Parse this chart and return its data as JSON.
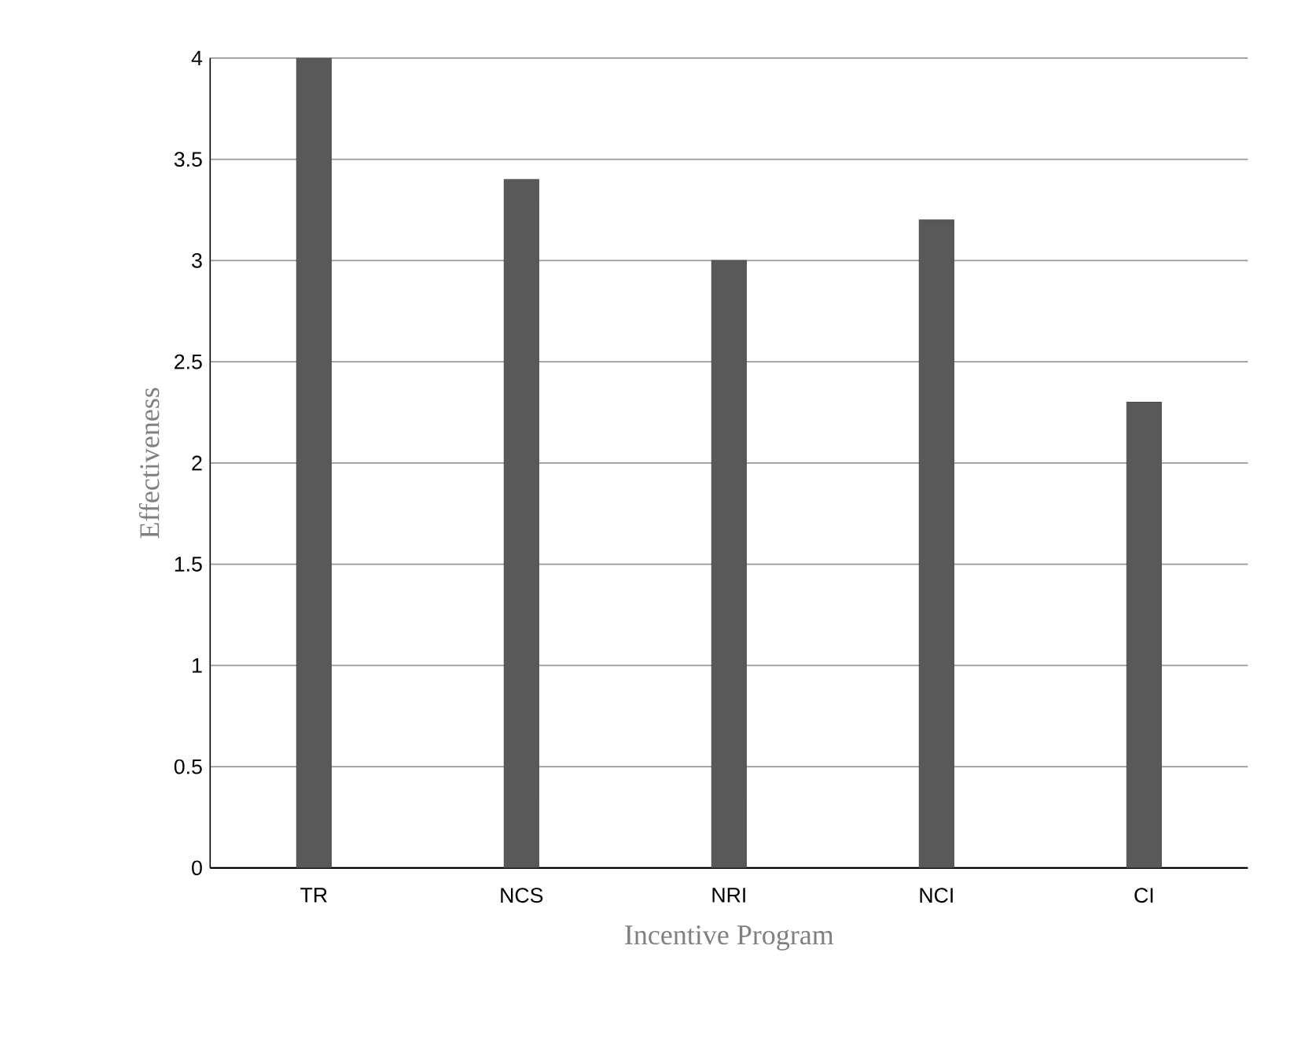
{
  "chart_data": {
    "type": "bar",
    "xlabel": "Incentive Program",
    "ylabel": "Effectiveness",
    "categories": [
      "TR",
      "NCS",
      "NRI",
      "NCI",
      "CI"
    ],
    "values": [
      4,
      3.4,
      3,
      3.2,
      2.3
    ],
    "color": "#595959",
    "ylim": [
      0,
      4
    ],
    "yticks": [
      0,
      0.5,
      1,
      1.5,
      2,
      2.5,
      3,
      3.5,
      4
    ],
    "grid": "y"
  }
}
